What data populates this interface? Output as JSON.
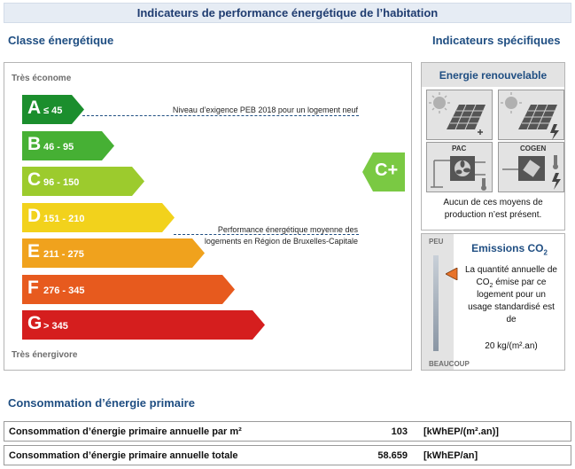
{
  "banner_title": "Indicateurs de performance énergétique de l’habitation",
  "classe": {
    "title": "Classe énergétique",
    "top_label": "Très économe",
    "bottom_label": "Très énergivore",
    "classes": [
      {
        "letter": "A",
        "range": "≤ 45",
        "color": "#1b8e2d"
      },
      {
        "letter": "B",
        "range": "46 - 95",
        "color": "#46b034"
      },
      {
        "letter": "C",
        "range": "96 - 150",
        "color": "#9ccb2d"
      },
      {
        "letter": "D",
        "range": "151 - 210",
        "color": "#f2d21c"
      },
      {
        "letter": "E",
        "range": "211 - 275",
        "color": "#f0a21d"
      },
      {
        "letter": "F",
        "range": "276 - 345",
        "color": "#e75a1e"
      },
      {
        "letter": "G",
        "range": "> 345",
        "color": "#d51e1e"
      }
    ],
    "note_peb": "Niveau d’exigence PEB 2018 pour un logement neuf",
    "note_avg_line1": "Performance énergétique moyenne des",
    "note_avg_line2": "logements en Région de Bruxelles-Capitale",
    "current_class": "C+",
    "current_color": "#7ac943"
  },
  "specific": {
    "title": "Indicateurs spécifiques",
    "renewable_title": "Energie renouvelable",
    "pac_label": "PAC",
    "cogen_label": "COGEN",
    "renewable_text": [
      "Aucun de ces moyens de",
      "production n’est présent."
    ],
    "emissions_title_prefix": "Emissions CO",
    "emissions_title_sub": "2",
    "scale_top": "PEU",
    "scale_bottom": "BEAUCOUP",
    "emissions_text": [
      "La quantité annuelle de",
      "CO",
      "2",
      " émise par ce",
      "logement pour un",
      "usage standardisé est",
      "de"
    ],
    "emissions_value": "20 kg/(m².an)",
    "emissions_level": 0.19
  },
  "consumption": {
    "title": "Consommation d’énergie primaire",
    "rows": [
      {
        "label": "Consommation d’énergie primaire annuelle par m²",
        "value": "103",
        "unit": "[kWhEP/(m².an)]"
      },
      {
        "label": "Consommation d’énergie primaire annuelle totale",
        "value": "58.659",
        "unit": "[kWhEP/an]"
      }
    ]
  }
}
